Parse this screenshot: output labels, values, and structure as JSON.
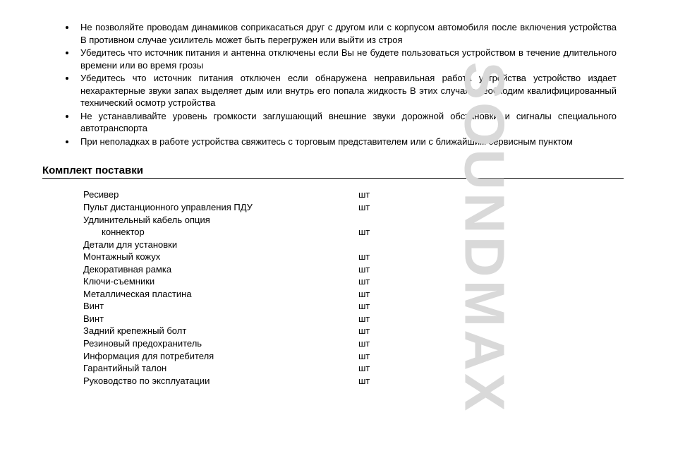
{
  "watermark": "SOUNDMAX",
  "bullets": [
    "Не позволяйте проводам динамиков соприкасаться друг с другом или с корпусом автомобиля после включения устройства  В противном случае усилитель может быть перегружен или выйти из строя",
    "Убедитесь  что источник питания и антенна отключены  если Вы не будете пользоваться устройством в течение длительного времени или во время грозы",
    "Убедитесь  что источник питания отключен  если обнаружена неправильная работа устройства  устройство издает нехарактерные звуки  запах  выделяет дым или внутрь его попала жидкость  В этих случаях необходим квалифицированный технический осмотр устройства",
    "Не устанавливайте уровень громкости  заглушающий внешние звуки дорожной обстановки и сигналы специального автотранспорта",
    "При неполадках в работе устройства свяжитесь с торговым представителем или с ближайшим сервисным пунктом"
  ],
  "section_heading": "Комплект поставки",
  "package_items": [
    {
      "name": "Ресивер",
      "unit": "шт",
      "indent": false
    },
    {
      "name": "Пульт дистанционного управления   ПДУ",
      "unit": "шт",
      "indent": false
    },
    {
      "name": "Удлинительный      кабель   опция",
      "unit": "",
      "indent": false
    },
    {
      "name": "коннектор",
      "unit": "шт",
      "indent": true
    },
    {
      "name": "Детали для установки",
      "unit": "",
      "indent": false
    },
    {
      "name": "Монтажный кожух",
      "unit": "шт",
      "indent": false
    },
    {
      "name": "Декоративная рамка",
      "unit": "шт",
      "indent": false
    },
    {
      "name": "Ключи-съемники",
      "unit": "шт",
      "indent": false
    },
    {
      "name": "Металлическая пластина",
      "unit": "шт",
      "indent": false
    },
    {
      "name": "Винт",
      "unit": "шт",
      "indent": false
    },
    {
      "name": "Винт",
      "unit": "шт",
      "indent": false
    },
    {
      "name": "Задний крепежный болт",
      "unit": "шт",
      "indent": false
    },
    {
      "name": "Резиновый предохранитель",
      "unit": "шт",
      "indent": false
    },
    {
      "name": "Информация для потребителя",
      "unit": "шт",
      "indent": false
    },
    {
      "name": "Гарантийный талон",
      "unit": "шт",
      "indent": false
    },
    {
      "name": "Руководство по эксплуатации",
      "unit": "шт",
      "indent": false
    }
  ]
}
